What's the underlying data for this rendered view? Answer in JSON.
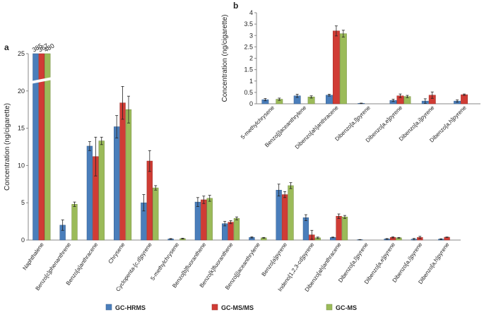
{
  "chart_data": [
    {
      "panel": "a",
      "type": "bar",
      "ylabel": "Concentration  (ng/cigarette)",
      "ylim": [
        0,
        25
      ],
      "yticks": [
        0,
        5,
        10,
        15,
        20,
        25
      ],
      "axis_break": true,
      "categories": [
        "Naphthalene",
        "Benzo[c]phenanthrene",
        "Benzo[a]anthracene",
        "Chrysene",
        "Cyclopenta-[c,d]pyrene",
        "5-methylchrysene",
        "Benzo[b]fluoranthene",
        "Benzo[k]fluoranthene",
        "Benzo[j]aceanthrylene",
        "Benzo[a]pyrene",
        "Indeno[1,2,3-cd]pyrene",
        "Dibenzo[ah]anthracene",
        "Dibenzo[a,l]pyrene",
        "Dibenzo[a,e]pyrene",
        "Dibenzo[a,i]pyrene",
        "Dibenzo[a,h]pyrene"
      ],
      "series": [
        {
          "name": "GC-HRMS",
          "color": "#4a7ebb",
          "values": [
            385,
            2.0,
            12.6,
            15.2,
            5.0,
            0.15,
            5.1,
            2.2,
            0.35,
            6.7,
            3.0,
            0.35,
            0.05,
            0.15,
            0.12,
            0.12
          ],
          "errors": [
            0,
            0.7,
            0.6,
            1.5,
            1.1,
            0.05,
            0.6,
            0.3,
            0.08,
            0.8,
            0.4,
            0.05,
            0.02,
            0.05,
            0.1,
            0.05
          ]
        },
        {
          "name": "GC-MS/MS",
          "color": "#d03c35",
          "values": [
            367,
            0,
            11.2,
            18.4,
            10.6,
            0,
            5.4,
            2.4,
            0,
            6.1,
            0.7,
            3.2,
            0,
            0.35,
            0.35,
            0.38
          ],
          "errors": [
            0,
            0,
            2.6,
            2.2,
            1.4,
            0,
            0.5,
            0.2,
            0,
            0.4,
            0.6,
            0.3,
            0,
            0.08,
            0.15,
            0.03
          ]
        },
        {
          "name": "GC-MS",
          "color": "#9bbb59",
          "values": [
            480,
            4.8,
            13.3,
            17.5,
            7.0,
            0.2,
            5.6,
            2.9,
            0.3,
            7.3,
            0.3,
            3.1,
            0,
            0.3,
            0,
            0
          ],
          "errors": [
            0,
            0.3,
            0.5,
            1.8,
            0.3,
            0.05,
            0.4,
            0.2,
            0.05,
            0.4,
            0.1,
            0.2,
            0,
            0.05,
            0,
            0
          ]
        }
      ],
      "overflow_labels": [
        "385",
        "367",
        "480"
      ]
    },
    {
      "panel": "b",
      "type": "bar",
      "ylabel": "Concentration (ng/cigarette)",
      "ylim": [
        0,
        4
      ],
      "yticks": [
        0,
        0.5,
        1,
        1.5,
        2,
        2.5,
        3,
        3.5,
        4
      ],
      "ytick_labels": [
        "0",
        "0.5",
        "1",
        "1.5",
        "2",
        "2.5",
        "3",
        "3.5",
        "4"
      ],
      "categories": [
        "5-methylchrysene",
        "Benzo[j]aceanthrylene",
        "Dibenzo[ah]anthracene",
        "Dibenzo[a,l]pyrene",
        "Dibenzo[a,e]pyrene",
        "Dibenzo[a,i]pyrene",
        "Dibenzo[a,h]pyrene"
      ],
      "series": [
        {
          "name": "GC-HRMS",
          "color": "#4a7ebb",
          "values": [
            0.18,
            0.35,
            0.38,
            0.02,
            0.15,
            0.12,
            0.12
          ],
          "errors": [
            0.05,
            0.07,
            0.04,
            0.01,
            0.05,
            0.1,
            0.05
          ]
        },
        {
          "name": "GC-MS/MS",
          "color": "#d03c35",
          "values": [
            0,
            0,
            3.2,
            0,
            0.35,
            0.38,
            0.4
          ],
          "errors": [
            0,
            0,
            0.22,
            0,
            0.08,
            0.14,
            0.03
          ]
        },
        {
          "name": "GC-MS",
          "color": "#9bbb59",
          "values": [
            0.2,
            0.3,
            3.08,
            0,
            0.32,
            0,
            0
          ],
          "errors": [
            0.05,
            0.05,
            0.15,
            0,
            0.05,
            0,
            0
          ]
        }
      ]
    }
  ],
  "legend": [
    {
      "label": "GC-HRMS",
      "color": "#4a7ebb"
    },
    {
      "label": "GC-MS/MS",
      "color": "#d03c35"
    },
    {
      "label": "GC-MS",
      "color": "#9bbb59"
    }
  ]
}
